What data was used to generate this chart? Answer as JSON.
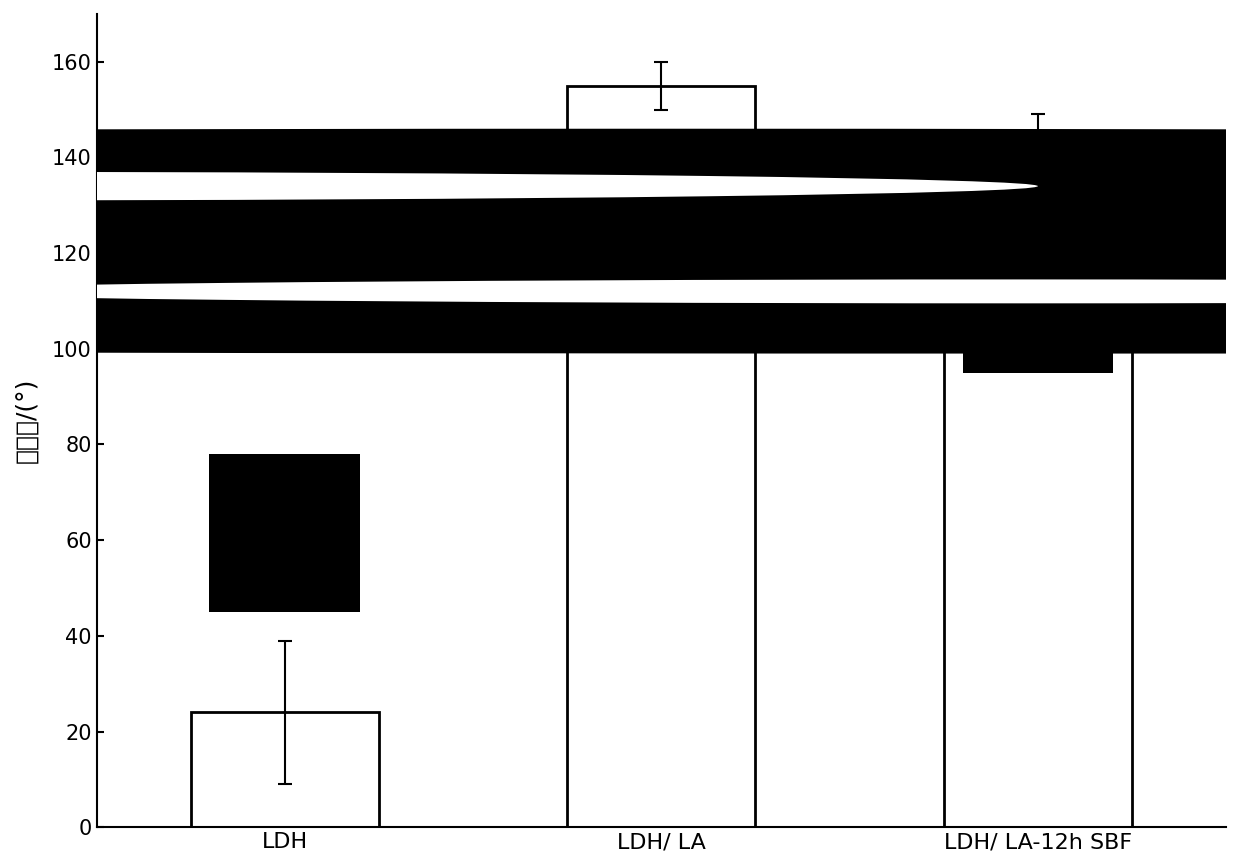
{
  "categories": [
    "LDH",
    "LDH/ LA",
    "LDH/ LA-12h SBF"
  ],
  "values": [
    24,
    155,
    141
  ],
  "errors": [
    15,
    5,
    8
  ],
  "bar_color": "#ffffff",
  "bar_edgecolor": "#000000",
  "bar_linewidth": 2.0,
  "ylabel": "接触角/(°)",
  "ylim": [
    0,
    170
  ],
  "yticks": [
    0,
    20,
    40,
    60,
    80,
    100,
    120,
    140,
    160
  ],
  "error_capsize": 5,
  "error_linewidth": 1.5,
  "error_color": "#000000",
  "xlabel_fontsize": 16,
  "ylabel_fontsize": 18,
  "tick_fontsize": 15,
  "background_color": "#ffffff",
  "figsize": [
    12.4,
    8.66
  ],
  "dpi": 100,
  "bar_width": 0.5
}
